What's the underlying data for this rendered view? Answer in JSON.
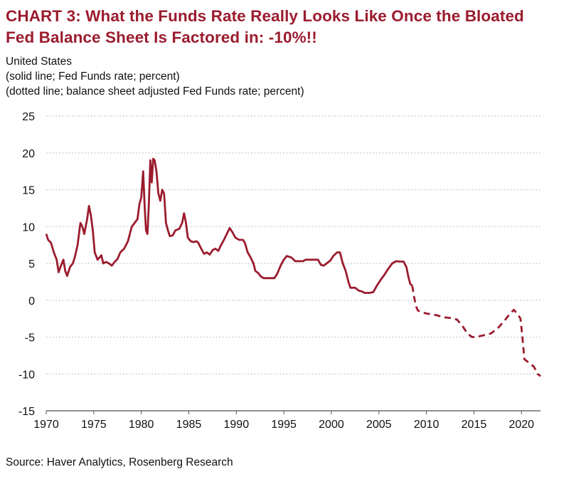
{
  "title_lines": [
    "CHART 3: What the Funds Rate Really Looks Like Once the Bloated",
    "Fed Balance Sheet Is Factored in: -10%!!"
  ],
  "subtitle_lines": [
    "United States",
    "(solid line; Fed Funds rate; percent)",
    "(dotted line; balance sheet adjusted Fed Funds rate; percent)"
  ],
  "source": "Source: Haver Analytics, Rosenberg Research",
  "colors": {
    "title": "#9b1c2e",
    "series": "#9b1c2e",
    "grid": "#bdbdbd",
    "axis": "#555555"
  },
  "chart_data": {
    "type": "line",
    "xlim": [
      1970,
      2022
    ],
    "ylim": [
      -15,
      25
    ],
    "xticks": [
      1970,
      1975,
      1980,
      1985,
      1990,
      1995,
      2000,
      2005,
      2010,
      2015,
      2020
    ],
    "yticks": [
      25,
      20,
      15,
      10,
      5,
      0,
      -5,
      -10,
      -15
    ],
    "grid": "horizontal dotted",
    "legend": "none",
    "series": [
      {
        "style": "solid",
        "points": [
          [
            1970.0,
            9.0
          ],
          [
            1970.2,
            8.2
          ],
          [
            1970.5,
            7.8
          ],
          [
            1970.8,
            6.5
          ],
          [
            1971.1,
            5.5
          ],
          [
            1971.3,
            3.8
          ],
          [
            1971.5,
            4.5
          ],
          [
            1971.8,
            5.5
          ],
          [
            1972.0,
            4.0
          ],
          [
            1972.2,
            3.3
          ],
          [
            1972.5,
            4.5
          ],
          [
            1972.8,
            5.0
          ],
          [
            1973.0,
            5.8
          ],
          [
            1973.3,
            7.5
          ],
          [
            1973.6,
            10.5
          ],
          [
            1973.8,
            10.0
          ],
          [
            1974.0,
            9.0
          ],
          [
            1974.3,
            11.0
          ],
          [
            1974.5,
            12.8
          ],
          [
            1974.7,
            11.5
          ],
          [
            1974.9,
            9.5
          ],
          [
            1975.1,
            6.5
          ],
          [
            1975.4,
            5.5
          ],
          [
            1975.8,
            6.1
          ],
          [
            1976.0,
            5.0
          ],
          [
            1976.3,
            5.2
          ],
          [
            1976.6,
            5.0
          ],
          [
            1976.9,
            4.7
          ],
          [
            1977.2,
            5.2
          ],
          [
            1977.5,
            5.6
          ],
          [
            1977.8,
            6.5
          ],
          [
            1978.2,
            7.0
          ],
          [
            1978.6,
            8.0
          ],
          [
            1979.0,
            10.0
          ],
          [
            1979.3,
            10.5
          ],
          [
            1979.6,
            11.0
          ],
          [
            1979.8,
            13.0
          ],
          [
            1980.0,
            14.0
          ],
          [
            1980.2,
            17.5
          ],
          [
            1980.35,
            13.0
          ],
          [
            1980.5,
            9.5
          ],
          [
            1980.65,
            9.0
          ],
          [
            1980.8,
            13.0
          ],
          [
            1980.95,
            19.0
          ],
          [
            1981.1,
            16.0
          ],
          [
            1981.25,
            19.2
          ],
          [
            1981.4,
            19.0
          ],
          [
            1981.6,
            17.5
          ],
          [
            1981.8,
            14.5
          ],
          [
            1982.0,
            13.5
          ],
          [
            1982.2,
            15.0
          ],
          [
            1982.4,
            14.5
          ],
          [
            1982.6,
            10.5
          ],
          [
            1982.8,
            9.5
          ],
          [
            1983.0,
            8.7
          ],
          [
            1983.3,
            8.8
          ],
          [
            1983.6,
            9.5
          ],
          [
            1984.0,
            9.7
          ],
          [
            1984.3,
            10.5
          ],
          [
            1984.5,
            11.8
          ],
          [
            1984.7,
            10.5
          ],
          [
            1984.9,
            8.5
          ],
          [
            1985.2,
            8.0
          ],
          [
            1985.5,
            7.9
          ],
          [
            1985.8,
            8.0
          ],
          [
            1986.0,
            7.8
          ],
          [
            1986.3,
            7.0
          ],
          [
            1986.6,
            6.3
          ],
          [
            1986.9,
            6.5
          ],
          [
            1987.2,
            6.2
          ],
          [
            1987.5,
            6.8
          ],
          [
            1987.8,
            7.0
          ],
          [
            1988.1,
            6.7
          ],
          [
            1988.4,
            7.5
          ],
          [
            1988.7,
            8.2
          ],
          [
            1989.0,
            9.0
          ],
          [
            1989.3,
            9.8
          ],
          [
            1989.6,
            9.2
          ],
          [
            1989.9,
            8.5
          ],
          [
            1990.3,
            8.2
          ],
          [
            1990.7,
            8.2
          ],
          [
            1990.9,
            7.8
          ],
          [
            1991.2,
            6.5
          ],
          [
            1991.5,
            5.8
          ],
          [
            1991.8,
            5.0
          ],
          [
            1992.0,
            4.0
          ],
          [
            1992.3,
            3.7
          ],
          [
            1992.6,
            3.2
          ],
          [
            1992.9,
            3.0
          ],
          [
            1993.5,
            3.0
          ],
          [
            1994.0,
            3.0
          ],
          [
            1994.3,
            3.6
          ],
          [
            1994.7,
            4.8
          ],
          [
            1995.0,
            5.5
          ],
          [
            1995.3,
            6.0
          ],
          [
            1995.8,
            5.8
          ],
          [
            1996.2,
            5.3
          ],
          [
            1996.6,
            5.3
          ],
          [
            1997.0,
            5.3
          ],
          [
            1997.3,
            5.5
          ],
          [
            1997.7,
            5.5
          ],
          [
            1998.2,
            5.5
          ],
          [
            1998.6,
            5.5
          ],
          [
            1998.9,
            4.8
          ],
          [
            1999.2,
            4.7
          ],
          [
            1999.6,
            5.1
          ],
          [
            1999.9,
            5.4
          ],
          [
            2000.2,
            6.0
          ],
          [
            2000.6,
            6.5
          ],
          [
            2000.9,
            6.5
          ],
          [
            2001.2,
            5.0
          ],
          [
            2001.5,
            4.0
          ],
          [
            2001.8,
            2.5
          ],
          [
            2002.0,
            1.7
          ],
          [
            2002.5,
            1.7
          ],
          [
            2002.9,
            1.3
          ],
          [
            2003.2,
            1.2
          ],
          [
            2003.5,
            1.0
          ],
          [
            2004.0,
            1.0
          ],
          [
            2004.4,
            1.1
          ],
          [
            2004.8,
            2.0
          ],
          [
            2005.2,
            2.8
          ],
          [
            2005.6,
            3.5
          ],
          [
            2006.0,
            4.3
          ],
          [
            2006.4,
            5.0
          ],
          [
            2006.8,
            5.3
          ],
          [
            2007.2,
            5.25
          ],
          [
            2007.6,
            5.25
          ],
          [
            2007.9,
            4.5
          ],
          [
            2008.1,
            3.2
          ],
          [
            2008.3,
            2.2
          ],
          [
            2008.5,
            2.0
          ]
        ]
      },
      {
        "style": "dashed",
        "points": [
          [
            2008.5,
            2.0
          ],
          [
            2008.7,
            0.5
          ],
          [
            2008.9,
            -0.8
          ],
          [
            2009.1,
            -1.4
          ],
          [
            2009.5,
            -1.6
          ],
          [
            2010.0,
            -1.8
          ],
          [
            2011.0,
            -2.0
          ],
          [
            2011.8,
            -2.3
          ],
          [
            2012.5,
            -2.4
          ],
          [
            2013.2,
            -2.6
          ],
          [
            2013.8,
            -3.5
          ],
          [
            2014.3,
            -4.5
          ],
          [
            2014.8,
            -5.0
          ],
          [
            2015.5,
            -4.9
          ],
          [
            2016.2,
            -4.7
          ],
          [
            2016.8,
            -4.5
          ],
          [
            2017.5,
            -3.8
          ],
          [
            2018.2,
            -2.8
          ],
          [
            2018.8,
            -1.8
          ],
          [
            2019.2,
            -1.3
          ],
          [
            2019.6,
            -1.9
          ],
          [
            2019.9,
            -2.5
          ],
          [
            2020.1,
            -5.0
          ],
          [
            2020.3,
            -8.0
          ],
          [
            2020.8,
            -8.5
          ],
          [
            2021.3,
            -9.0
          ],
          [
            2021.7,
            -10.0
          ],
          [
            2022.0,
            -10.3
          ]
        ]
      }
    ]
  }
}
